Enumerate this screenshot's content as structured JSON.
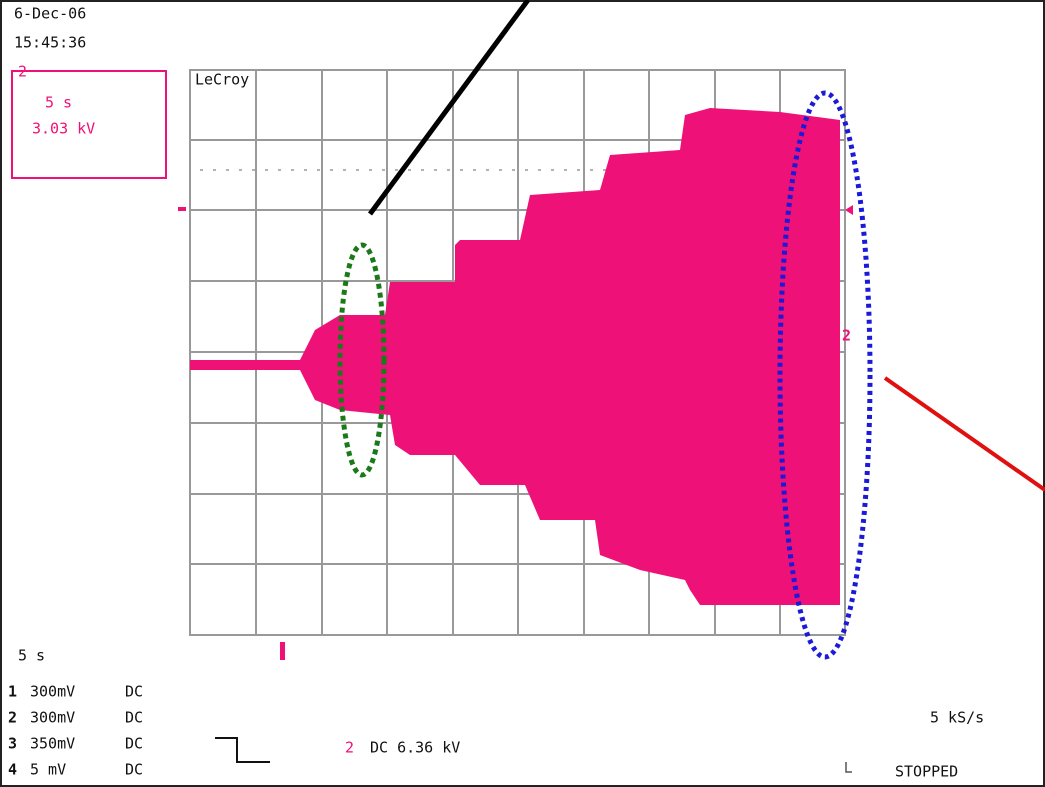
{
  "header": {
    "date": "6-Dec-06",
    "time": "15:45:36"
  },
  "readout": {
    "channel": "2",
    "timebase": "5 s",
    "voltage": "3.03 kV"
  },
  "brand": "LeCroy",
  "channel_marker": "2",
  "footer": {
    "timebase": "5 s",
    "channels": [
      {
        "id": "1",
        "scale": "300mV",
        "coupling": "DC"
      },
      {
        "id": "2",
        "scale": "300mV",
        "coupling": "DC"
      },
      {
        "id": "3",
        "scale": "350mV",
        "coupling": "DC"
      },
      {
        "id": "4",
        "scale": "5 mV",
        "coupling": "DC"
      }
    ],
    "trigger_channel": "2",
    "trigger": "DC 6.36 kV",
    "sample_rate": "5 kS/s",
    "status": "STOPPED"
  }
}
